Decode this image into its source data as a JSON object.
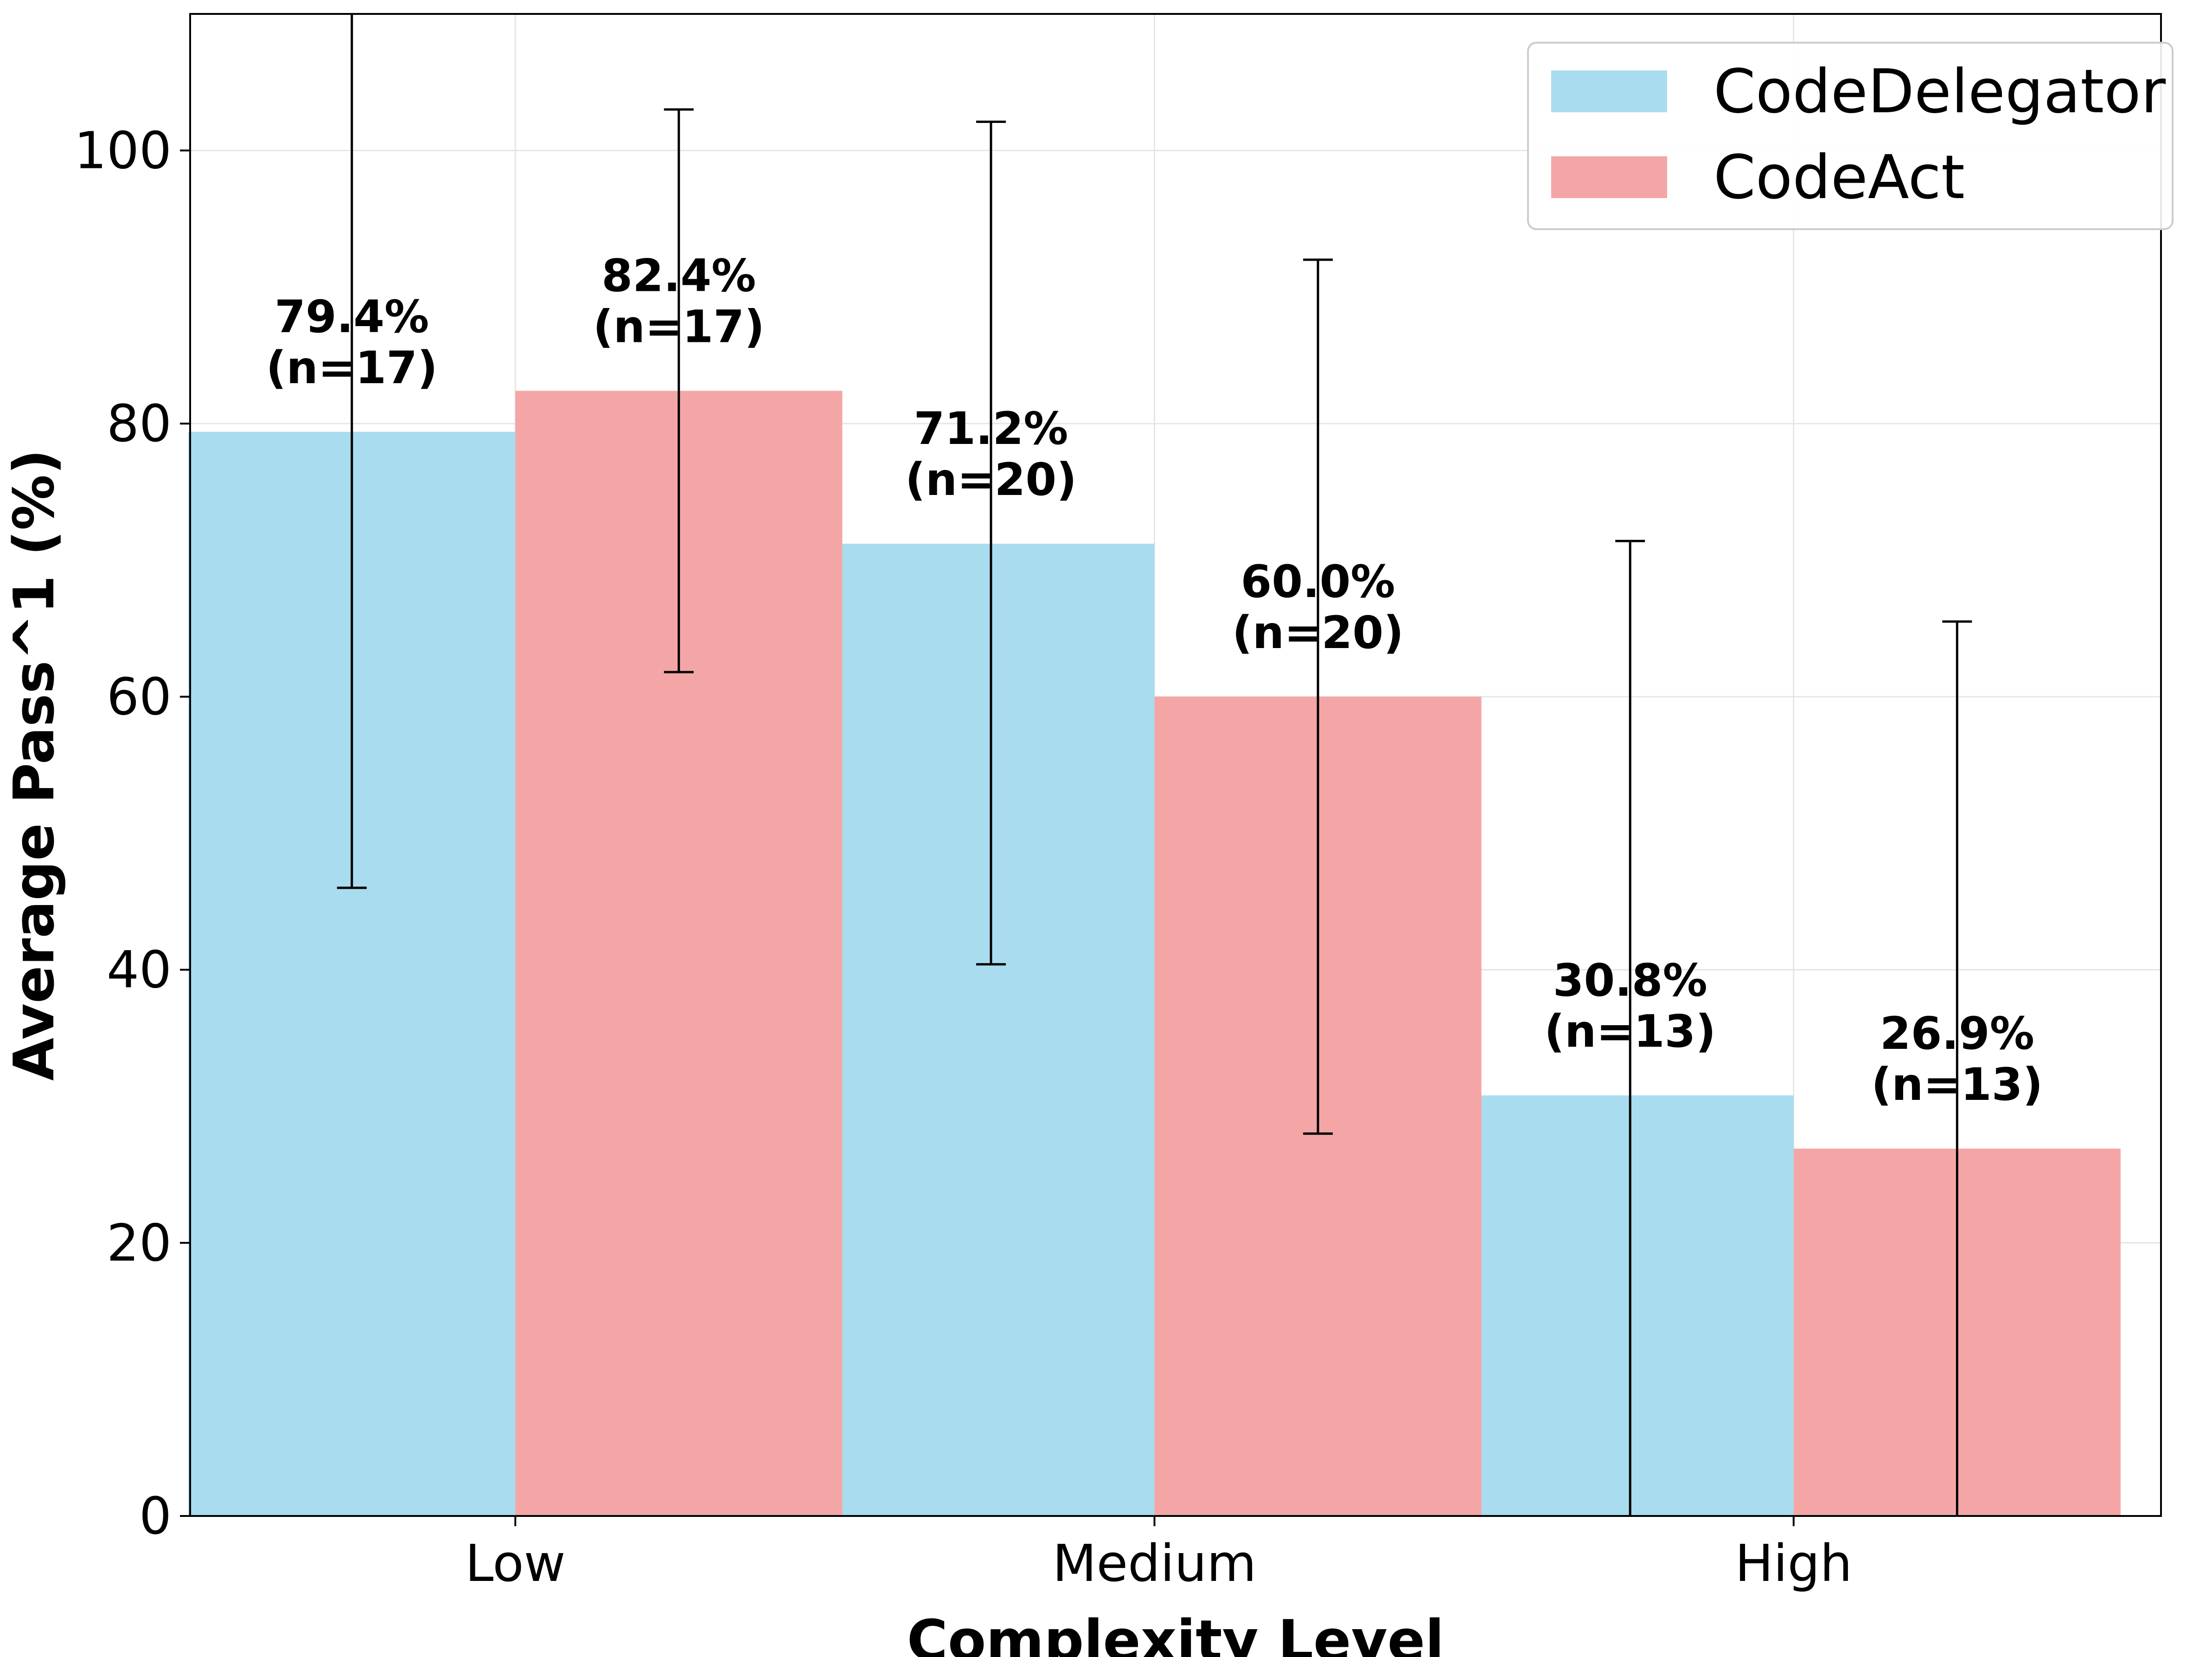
{
  "chart_data": {
    "type": "bar",
    "title": "",
    "xlabel": "Complexity Level",
    "ylabel": "Average Pass^1 (%)",
    "categories": [
      "Low",
      "Medium",
      "High"
    ],
    "ylim": [
      0,
      110
    ],
    "yticks": [
      0,
      20,
      40,
      60,
      80,
      100
    ],
    "grid": true,
    "legend_position": "top-right",
    "series": [
      {
        "name": "CodeDelegator",
        "color": "#a8dcee",
        "values": [
          79.4,
          71.2,
          30.8
        ],
        "error_low": [
          46.0,
          40.4,
          0.0
        ],
        "error_high": [
          112.8,
          102.1,
          71.4
        ],
        "labels": [
          "79.4%",
          "71.2%",
          "30.8%"
        ],
        "counts": [
          "(n=17)",
          "(n=20)",
          "(n=13)"
        ]
      },
      {
        "name": "CodeAct",
        "color": "#f4a6a6",
        "values": [
          82.4,
          60.0,
          26.9
        ],
        "error_low": [
          61.8,
          28.0,
          0.0
        ],
        "error_high": [
          103.0,
          92.0,
          65.5
        ],
        "labels": [
          "82.4%",
          "60.0%",
          "26.9%"
        ],
        "counts": [
          "(n=17)",
          "(n=20)",
          "(n=13)"
        ]
      }
    ]
  }
}
